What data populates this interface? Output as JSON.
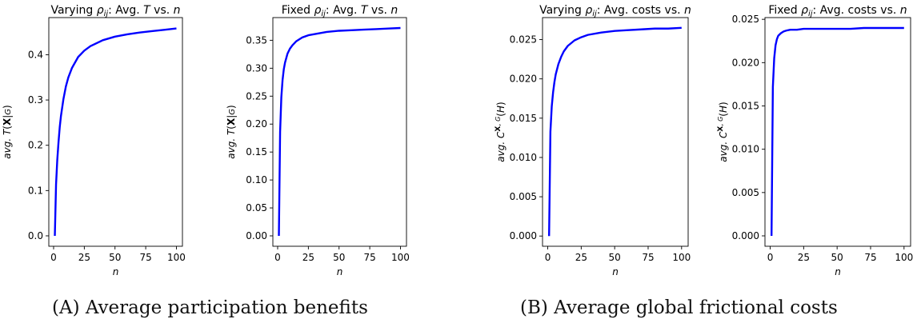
{
  "figure": {
    "caption_a": "(A) Average participation benefits",
    "caption_b": "(B) Average global frictional costs"
  },
  "chart_data": [
    {
      "type": "line",
      "title_prefix": "Varying ",
      "title_sym": "ρ",
      "title_sub": "ij",
      "title_rest": ": Avg. ",
      "title_var": "T",
      "title_suffix": " vs. ",
      "title_n": "n",
      "xlabel": "n",
      "ylabel": "avg. T(X|G)",
      "xlim": [
        -3.9,
        104.9
      ],
      "ylim": [
        -0.023,
        0.482
      ],
      "xticks": [
        0,
        25,
        50,
        75,
        100
      ],
      "yticks": [
        0.0,
        0.1,
        0.2,
        0.3,
        0.4
      ],
      "ytick_labels": [
        "0.0",
        "0.1",
        "0.2",
        "0.3",
        "0.4"
      ],
      "color": "#0000ff",
      "series": [
        {
          "x": [
            1,
            2,
            3,
            4,
            5,
            6,
            8,
            10,
            12,
            15,
            20,
            25,
            30,
            40,
            50,
            60,
            70,
            80,
            90,
            100
          ],
          "values": [
            0.0,
            0.114,
            0.168,
            0.207,
            0.24,
            0.265,
            0.302,
            0.33,
            0.35,
            0.371,
            0.395,
            0.409,
            0.419,
            0.432,
            0.44,
            0.445,
            0.449,
            0.452,
            0.455,
            0.458
          ]
        }
      ]
    },
    {
      "type": "line",
      "title_prefix": "Fixed ",
      "title_sym": "ρ",
      "title_sub": "ij",
      "title_rest": ": Avg. ",
      "title_var": "T",
      "title_suffix": " vs. ",
      "title_n": "n",
      "xlabel": "n",
      "ylabel": "avg. T(X|G)",
      "xlim": [
        -3.9,
        104.9
      ],
      "ylim": [
        -0.0186,
        0.3906
      ],
      "xticks": [
        0,
        25,
        50,
        75,
        100
      ],
      "yticks": [
        0.0,
        0.05,
        0.1,
        0.15,
        0.2,
        0.25,
        0.3,
        0.35
      ],
      "ytick_labels": [
        "0.00",
        "0.05",
        "0.10",
        "0.15",
        "0.20",
        "0.25",
        "0.30",
        "0.35"
      ],
      "color": "#0000ff",
      "series": [
        {
          "x": [
            1,
            2,
            3,
            4,
            5,
            6,
            8,
            10,
            12,
            15,
            20,
            25,
            30,
            40,
            50,
            60,
            70,
            80,
            90,
            100
          ],
          "values": [
            0.0,
            0.186,
            0.248,
            0.279,
            0.298,
            0.31,
            0.326,
            0.335,
            0.341,
            0.348,
            0.355,
            0.359,
            0.361,
            0.365,
            0.367,
            0.368,
            0.369,
            0.37,
            0.371,
            0.372
          ]
        }
      ]
    },
    {
      "type": "line",
      "title_prefix": "Varying ",
      "title_sym": "ρ",
      "title_sub": "ij",
      "title_rest": ": Avg. costs vs. ",
      "title_var": "",
      "title_suffix": "",
      "title_n": "n",
      "xlabel": "n",
      "ylabel": "avg. C^{X, G}(H)",
      "xlim": [
        -3.9,
        104.9
      ],
      "ylim": [
        -0.0013,
        0.0278
      ],
      "xticks": [
        0,
        25,
        50,
        75,
        100
      ],
      "yticks": [
        0.0,
        0.005,
        0.01,
        0.015,
        0.02,
        0.025
      ],
      "ytick_labels": [
        "0.000",
        "0.005",
        "0.010",
        "0.015",
        "0.020",
        "0.025"
      ],
      "color": "#0000ff",
      "series": [
        {
          "x": [
            1,
            2,
            3,
            4,
            5,
            6,
            8,
            10,
            12,
            15,
            20,
            25,
            30,
            40,
            50,
            60,
            70,
            80,
            90,
            100
          ],
          "values": [
            0.0,
            0.0133,
            0.0165,
            0.0183,
            0.0196,
            0.0206,
            0.0219,
            0.0228,
            0.0235,
            0.0242,
            0.0249,
            0.0253,
            0.0256,
            0.0259,
            0.0261,
            0.0262,
            0.0263,
            0.0264,
            0.0264,
            0.0265
          ]
        }
      ]
    },
    {
      "type": "line",
      "title_prefix": "Fixed ",
      "title_sym": "ρ",
      "title_sub": "ij",
      "title_rest": ": Avg. costs vs. ",
      "title_var": "",
      "title_suffix": "",
      "title_n": "n",
      "xlabel": "n",
      "ylabel": "avg. C^{X, G}(H)",
      "xlim": [
        -3.9,
        104.9
      ],
      "ylim": [
        -0.0012,
        0.0252
      ],
      "xticks": [
        0,
        25,
        50,
        75,
        100
      ],
      "yticks": [
        0.0,
        0.005,
        0.01,
        0.015,
        0.02,
        0.025
      ],
      "ytick_labels": [
        "0.000",
        "0.005",
        "0.010",
        "0.015",
        "0.020",
        "0.025"
      ],
      "color": "#0000ff",
      "series": [
        {
          "x": [
            1,
            2,
            3,
            4,
            5,
            6,
            8,
            10,
            12,
            15,
            20,
            25,
            30,
            40,
            50,
            60,
            70,
            80,
            90,
            100
          ],
          "values": [
            0.0,
            0.0172,
            0.0205,
            0.022,
            0.0227,
            0.0231,
            0.0234,
            0.0236,
            0.0237,
            0.0238,
            0.0238,
            0.0239,
            0.0239,
            0.0239,
            0.0239,
            0.0239,
            0.024,
            0.024,
            0.024,
            0.024
          ]
        }
      ]
    }
  ]
}
